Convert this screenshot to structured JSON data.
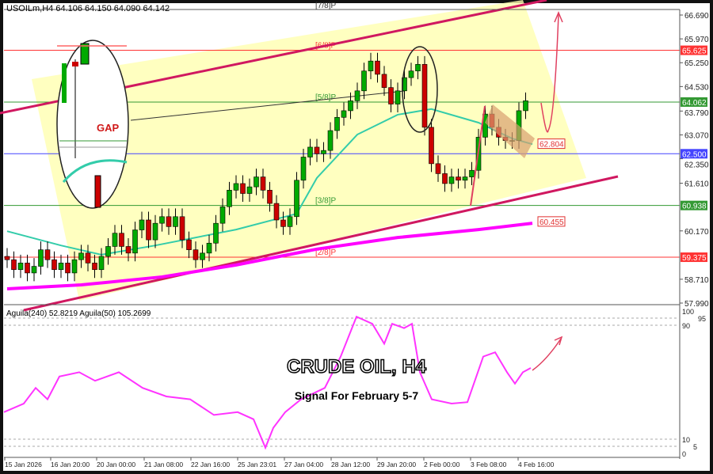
{
  "header": {
    "symbol_line": "USOILm,H4  64.106 64.150 64.090 64.142"
  },
  "indicator": {
    "title": "Aguila(240) 52.8219  Aguila(50) 105.2699",
    "axis_labels": [
      "100",
      "95",
      "90",
      "10",
      "5",
      "0"
    ],
    "color": "#ff33ff",
    "values": [
      [
        5,
        29
      ],
      [
        30,
        35
      ],
      [
        45,
        46
      ],
      [
        60,
        38
      ],
      [
        75,
        54
      ],
      [
        100,
        57
      ],
      [
        120,
        51
      ],
      [
        150,
        57
      ],
      [
        180,
        46
      ],
      [
        210,
        40
      ],
      [
        240,
        38
      ],
      [
        270,
        27
      ],
      [
        300,
        29
      ],
      [
        320,
        24
      ],
      [
        335,
        4
      ],
      [
        345,
        18
      ],
      [
        360,
        29
      ],
      [
        380,
        38
      ],
      [
        410,
        46
      ],
      [
        430,
        68
      ],
      [
        450,
        96
      ],
      [
        470,
        91
      ],
      [
        485,
        77
      ],
      [
        495,
        91
      ],
      [
        510,
        88
      ],
      [
        520,
        91
      ],
      [
        530,
        57
      ],
      [
        545,
        38
      ],
      [
        570,
        35
      ],
      [
        590,
        36
      ],
      [
        600,
        52
      ],
      [
        610,
        68
      ],
      [
        625,
        71
      ],
      [
        640,
        57
      ],
      [
        650,
        49
      ],
      [
        660,
        57
      ],
      [
        670,
        60
      ]
    ]
  },
  "overlay": {
    "title": "CRUDE OIL, H4",
    "subtitle": "Signal For February 5-7",
    "gap_label": "GAP"
  },
  "chart_data": {
    "type": "candlestick",
    "ylim": [
      57.99,
      66.69
    ],
    "y_ticks": [
      "66.690",
      "65.970",
      "65.250",
      "64.530",
      "63.790",
      "63.070",
      "62.350",
      "61.610",
      "60.170",
      "58.710",
      "57.990"
    ],
    "x_ticks": [
      "15 Jan 2026",
      "16 Jan 20:00",
      "20 Jan 00:00",
      "21 Jan 08:00",
      "22 Jan 16:00",
      "25 Jan 23:01",
      "27 Jan 04:00",
      "28 Jan 12:00",
      "29 Jan 20:00",
      "2 Feb 00:00",
      "3 Feb 08:00",
      "4 Feb 16:00"
    ],
    "closes": [
      59.3,
      59.0,
      59.2,
      58.9,
      59.1,
      59.6,
      59.3,
      59.0,
      59.2,
      58.9,
      59.3,
      59.5,
      59.2,
      59.0,
      59.4,
      59.7,
      60.1,
      59.7,
      59.5,
      60.2,
      60.5,
      59.9,
      60.4,
      60.6,
      60.3,
      60.6,
      59.9,
      59.6,
      59.3,
      59.5,
      59.8,
      60.4,
      60.9,
      61.4,
      61.6,
      61.3,
      61.5,
      61.8,
      61.4,
      61.0,
      60.5,
      60.3,
      60.6,
      61.7,
      62.4,
      62.7,
      62.5,
      62.6,
      63.2,
      63.6,
      63.8,
      64.1,
      64.4,
      65.0,
      65.3,
      64.9,
      64.5,
      64.0,
      64.4,
      64.8,
      65.0,
      65.2,
      63.3,
      62.2,
      61.9,
      61.6,
      61.8,
      61.7,
      61.8,
      62.0,
      63.0,
      63.7,
      63.3,
      63.0,
      62.9,
      62.9,
      63.8,
      64.1
    ],
    "bull_color": "#00aa00",
    "bear_color": "#cc0000",
    "ma_fast": {
      "color": "#33ccaa",
      "points": [
        [
          0,
          60.16
        ],
        [
          8,
          59.73
        ],
        [
          14,
          59.45
        ],
        [
          22,
          59.73
        ],
        [
          34,
          60.21
        ],
        [
          43,
          60.69
        ],
        [
          46,
          61.77
        ],
        [
          52,
          63.08
        ],
        [
          58,
          63.68
        ],
        [
          63,
          63.85
        ],
        [
          70,
          63.44
        ],
        [
          75,
          62.96
        ],
        [
          78,
          62.79
        ]
      ]
    },
    "ma_slow": {
      "color": "#ff00ff",
      "points": [
        [
          0,
          58.42
        ],
        [
          11,
          58.54
        ],
        [
          23,
          58.78
        ],
        [
          34,
          59.14
        ],
        [
          46,
          59.62
        ],
        [
          58,
          59.97
        ],
        [
          70,
          60.21
        ],
        [
          78,
          60.4
        ]
      ]
    },
    "levels": [
      {
        "price": 65.625,
        "label": "65.625",
        "tag": "[6/8]P",
        "color": "#ff3333"
      },
      {
        "price": 64.062,
        "label": "64.062",
        "tag": "[5/8]P",
        "color": "#339933"
      },
      {
        "price": 62.5,
        "label": "62.500",
        "tag": "",
        "color": "#4444ff"
      },
      {
        "price": 60.938,
        "label": "60.938",
        "tag": "[3/8]P",
        "color": "#339933"
      },
      {
        "price": 59.375,
        "label": "59.375",
        "tag": "[2/8]P",
        "color": "#ff3333"
      }
    ],
    "top_tag": "[7/8]P",
    "annotations": [
      {
        "price": 62.804,
        "label": "62.804"
      },
      {
        "price": 60.455,
        "label": "60.455"
      }
    ]
  }
}
